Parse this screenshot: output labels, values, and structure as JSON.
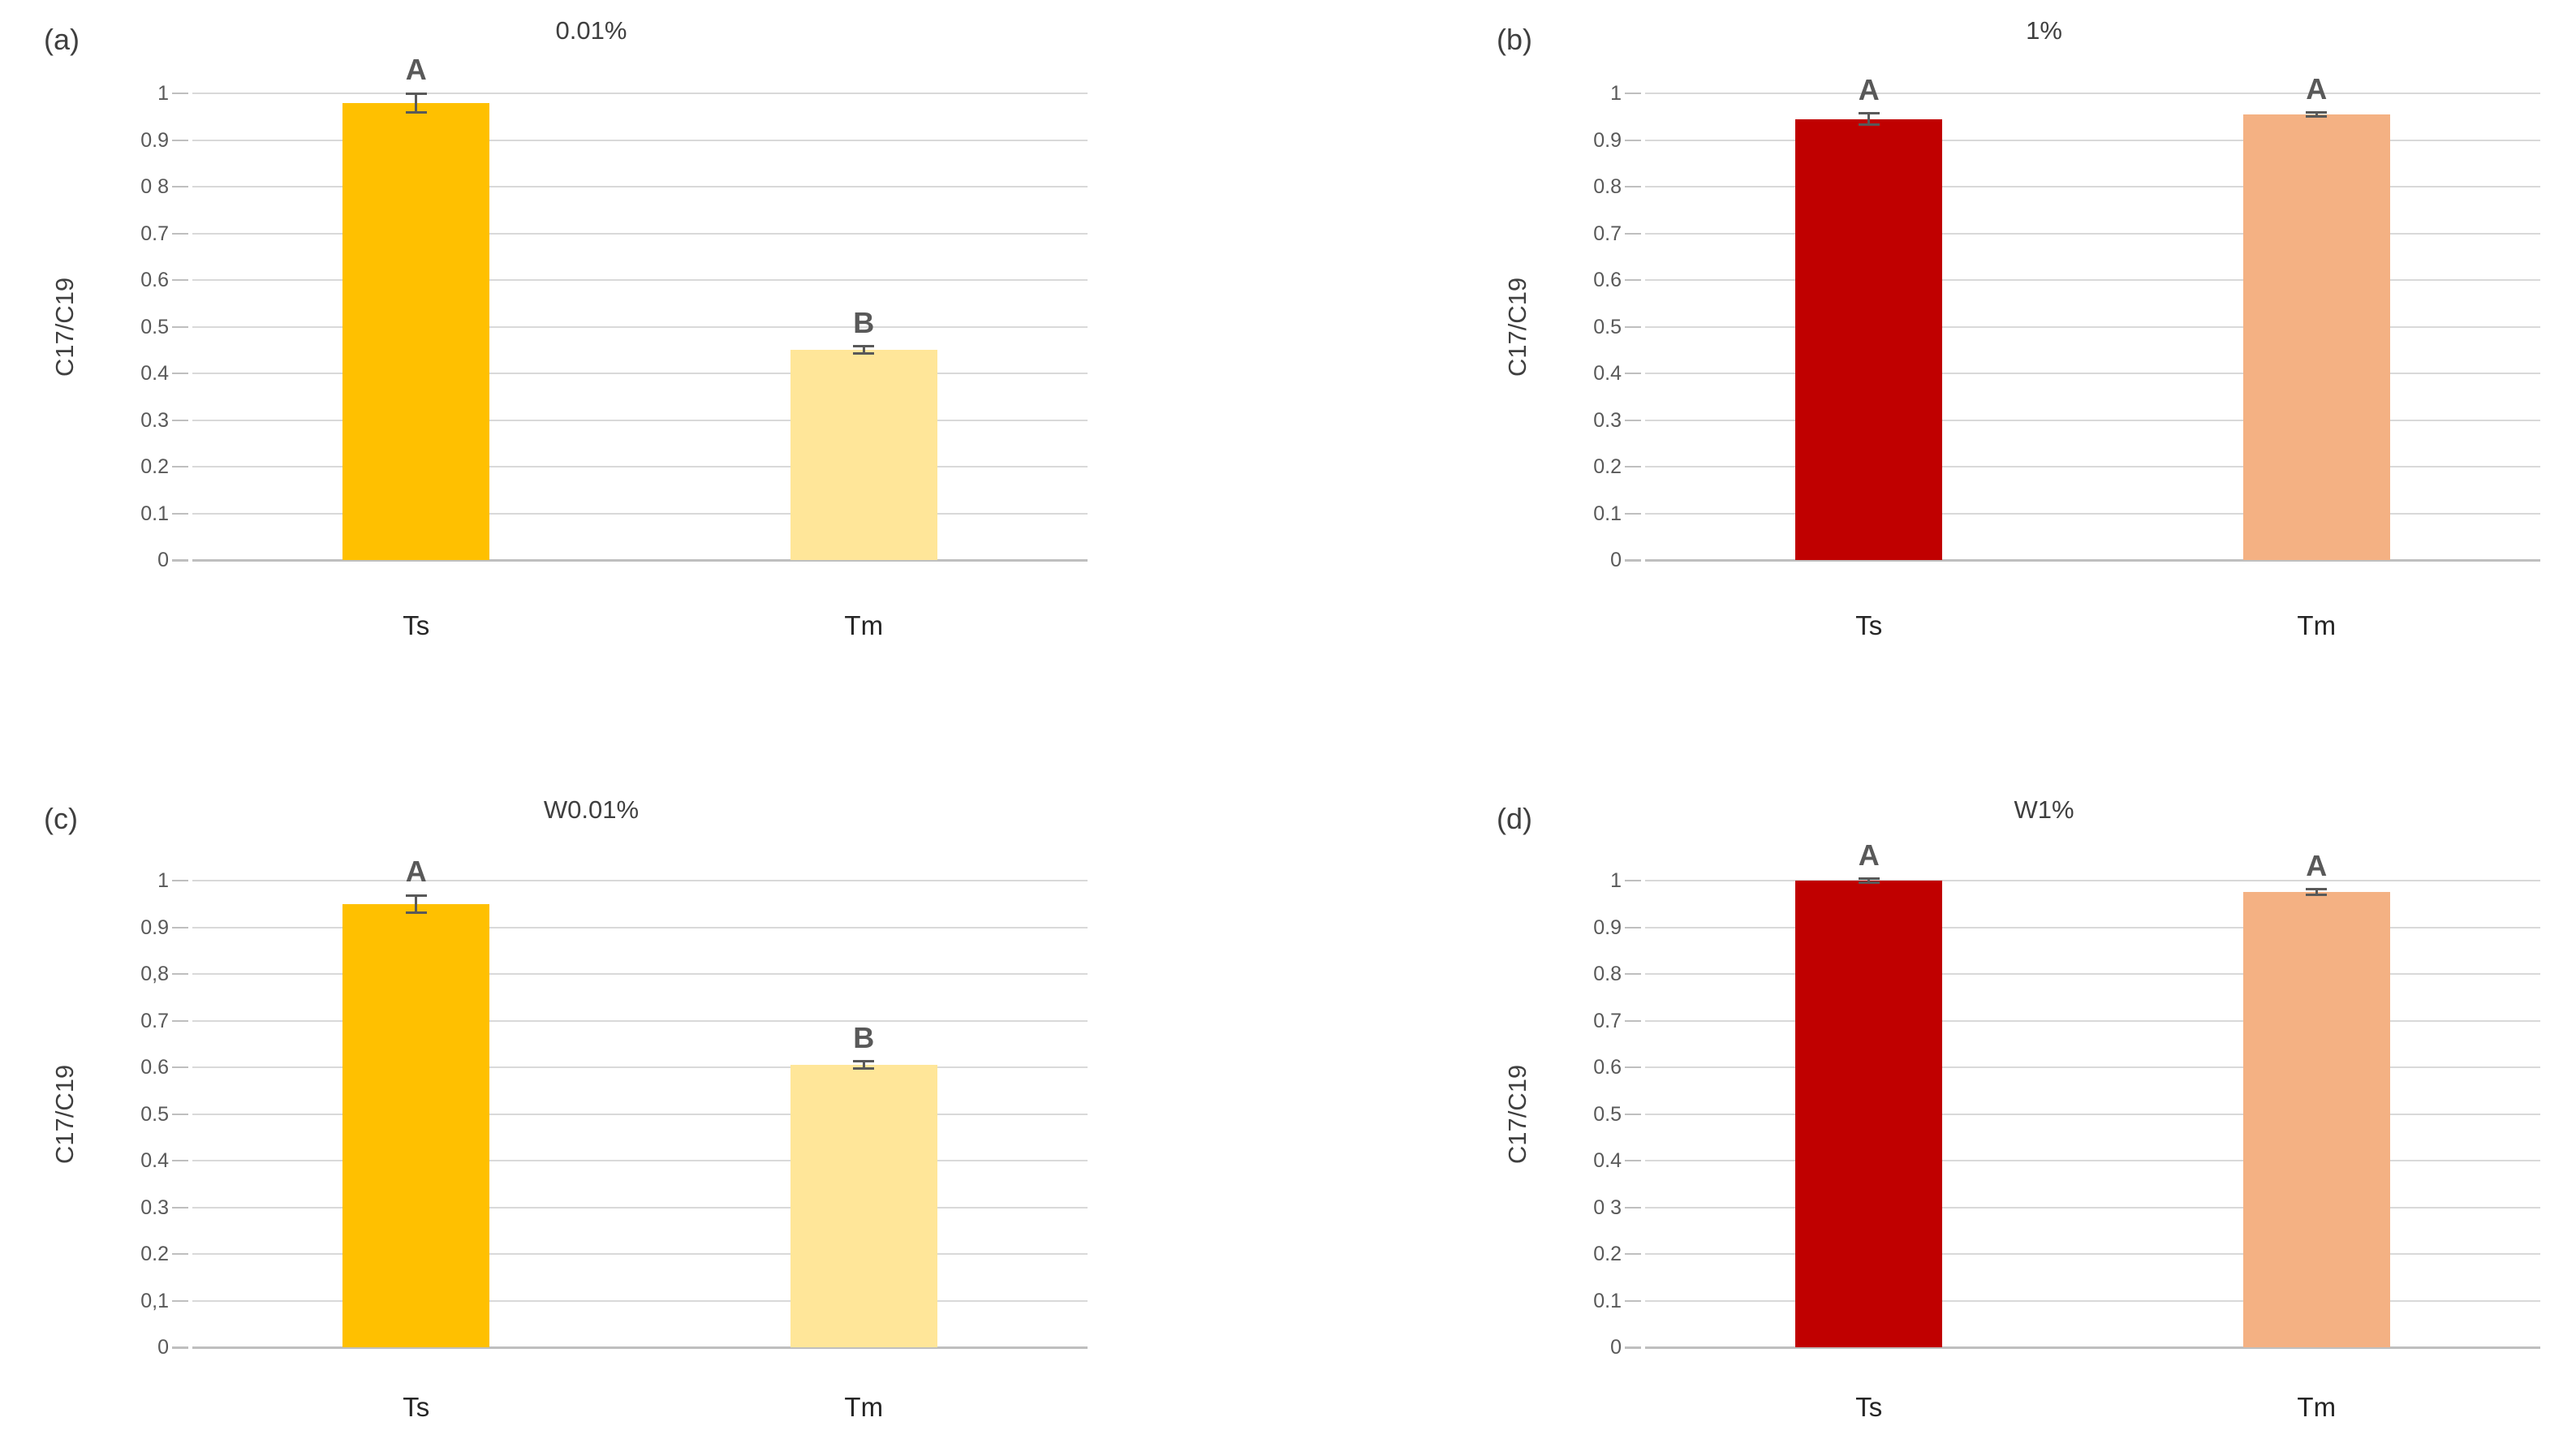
{
  "figure": {
    "y_axis_title": "C17/C19",
    "categories": [
      "Ts",
      "Tm"
    ],
    "colors": {
      "background": "#FFFFFF",
      "gridline": "#D9D9D9",
      "zero_axis_line": "#BFBFBF",
      "tick_text": "#595959",
      "axis_title_text": "#3F3F3F",
      "category_text": "#262626",
      "significance_letter_text": "#595959",
      "error_bar": "#595959",
      "ts_orange": "#FFC000",
      "tm_light_yellow": "#FFE699",
      "ts_dark_red": "#C00000",
      "tm_salmon": "#F4B183"
    }
  },
  "chart_data": [
    {
      "type": "bar",
      "panel_label": "(a)",
      "title": "0.01%",
      "ylabel": "C17/C19",
      "xlabel": "",
      "ylim": [
        0,
        1
      ],
      "grid": true,
      "legend": "none",
      "categories": [
        "Ts",
        "Tm"
      ],
      "values": [
        0.98,
        0.45
      ],
      "errors": [
        0.02,
        0.008
      ],
      "letters": [
        "A",
        "B"
      ],
      "bar_colors": [
        "#FFC000",
        "#FFE699"
      ],
      "yticks": [
        "1",
        "0.9",
        "0 8",
        "0.7",
        "0.6",
        "0.5",
        "0.4",
        "0.3",
        "0.2",
        "0.1",
        "0"
      ]
    },
    {
      "type": "bar",
      "panel_label": "(b)",
      "title": "1%",
      "ylabel": "C17/C19",
      "xlabel": "",
      "ylim": [
        0,
        1
      ],
      "grid": true,
      "legend": "none",
      "categories": [
        "Ts",
        "Tm"
      ],
      "values": [
        0.945,
        0.955
      ],
      "errors": [
        0.012,
        0.004
      ],
      "letters": [
        "A",
        "A"
      ],
      "bar_colors": [
        "#C00000",
        "#F4B183"
      ],
      "yticks": [
        "1",
        "0.9",
        "0.8",
        "0.7",
        "0.6",
        "0.5",
        "0.4",
        "0.3",
        "0.2",
        "0.1",
        "0"
      ]
    },
    {
      "type": "bar",
      "panel_label": "(c)",
      "title": "W0.01%",
      "ylabel": "C17/C19",
      "xlabel": "",
      "ylim": [
        0,
        1
      ],
      "grid": true,
      "legend": "none",
      "categories": [
        "Ts",
        "Tm"
      ],
      "values": [
        0.95,
        0.605
      ],
      "errors": [
        0.018,
        0.008
      ],
      "letters": [
        "A",
        "B"
      ],
      "bar_colors": [
        "#FFC000",
        "#FFE699"
      ],
      "yticks": [
        "1",
        "0.9",
        "0,8",
        "0.7",
        "0.6",
        "0.5",
        "0.4",
        "0.3",
        "0.2",
        "0,1",
        "0"
      ]
    },
    {
      "type": "bar",
      "panel_label": "(d)",
      "title": "W1%",
      "ylabel": "C17/C19",
      "xlabel": "",
      "ylim": [
        0,
        1
      ],
      "grid": true,
      "legend": "none",
      "categories": [
        "Ts",
        "Tm"
      ],
      "values": [
        1.0,
        0.975
      ],
      "errors": [
        0.004,
        0.006
      ],
      "letters": [
        "A",
        "A"
      ],
      "bar_colors": [
        "#C00000",
        "#F4B183"
      ],
      "yticks": [
        "1",
        "0.9",
        "0.8",
        "0.7",
        "0.6",
        "0.5",
        "0.4",
        "0 3",
        "0.2",
        "0.1",
        "0"
      ]
    }
  ]
}
